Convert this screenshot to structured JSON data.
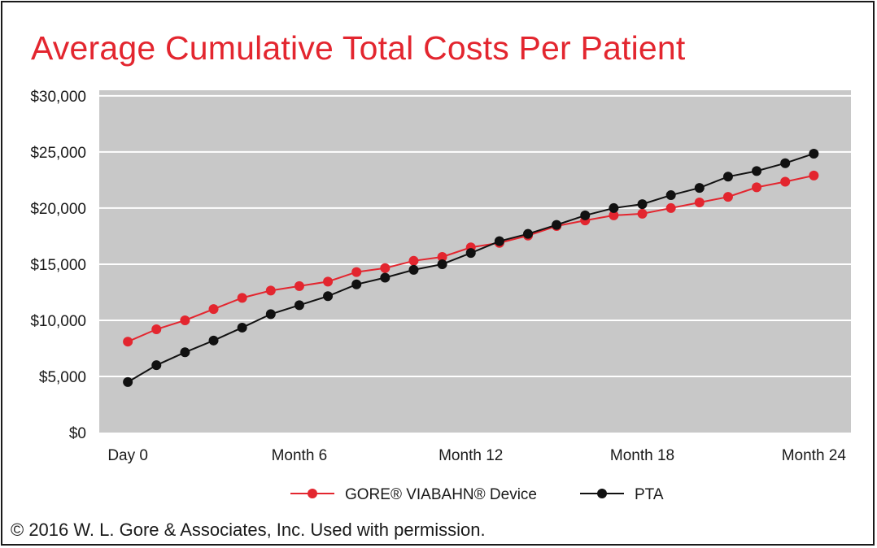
{
  "chart_data": {
    "type": "line",
    "title": "Average Cumulative Total Costs Per Patient",
    "xlabel": "",
    "ylabel": "",
    "x_ticks": [
      {
        "x": 0,
        "label": "Day 0"
      },
      {
        "x": 6,
        "label": "Month 6"
      },
      {
        "x": 12,
        "label": "Month 12"
      },
      {
        "x": 18,
        "label": "Month 18"
      },
      {
        "x": 24,
        "label": "Month 24"
      }
    ],
    "y_ticks": [
      0,
      5000,
      10000,
      15000,
      20000,
      25000,
      30000
    ],
    "y_tick_labels": [
      "$0",
      "$5,000",
      "$10,000",
      "$15,000",
      "$20,000",
      "$25,000",
      "$30,000"
    ],
    "xlim": [
      -1,
      25.3
    ],
    "ylim": [
      0,
      30500
    ],
    "x": [
      0,
      1,
      2,
      3,
      4,
      5,
      6,
      7,
      8,
      9,
      10,
      11,
      12,
      13,
      14,
      15,
      16,
      17,
      18,
      19,
      20,
      21,
      22,
      23,
      24
    ],
    "series": [
      {
        "name": "GORE® VIABAHN® Device",
        "color": "#e3262f",
        "values": [
          8100,
          9200,
          10000,
          11000,
          12000,
          12650,
          13050,
          13450,
          14300,
          14650,
          15300,
          15650,
          16500,
          16900,
          17550,
          18400,
          18900,
          19350,
          19500,
          20000,
          20500,
          21000,
          21850,
          22350,
          22900
        ]
      },
      {
        "name": "PTA",
        "color": "#111111",
        "values": [
          4500,
          6000,
          7150,
          8200,
          9350,
          10550,
          11350,
          12150,
          13200,
          13800,
          14500,
          15000,
          16000,
          17050,
          17700,
          18500,
          19350,
          20000,
          20350,
          21150,
          21800,
          22800,
          23300,
          24000,
          24850
        ]
      }
    ],
    "plot_background": "#c8c8c8",
    "grid": true,
    "legend": "bottom-center"
  },
  "footer": {
    "copyright": "© 2016 W. L. Gore & Associates, Inc. Used with permission."
  }
}
